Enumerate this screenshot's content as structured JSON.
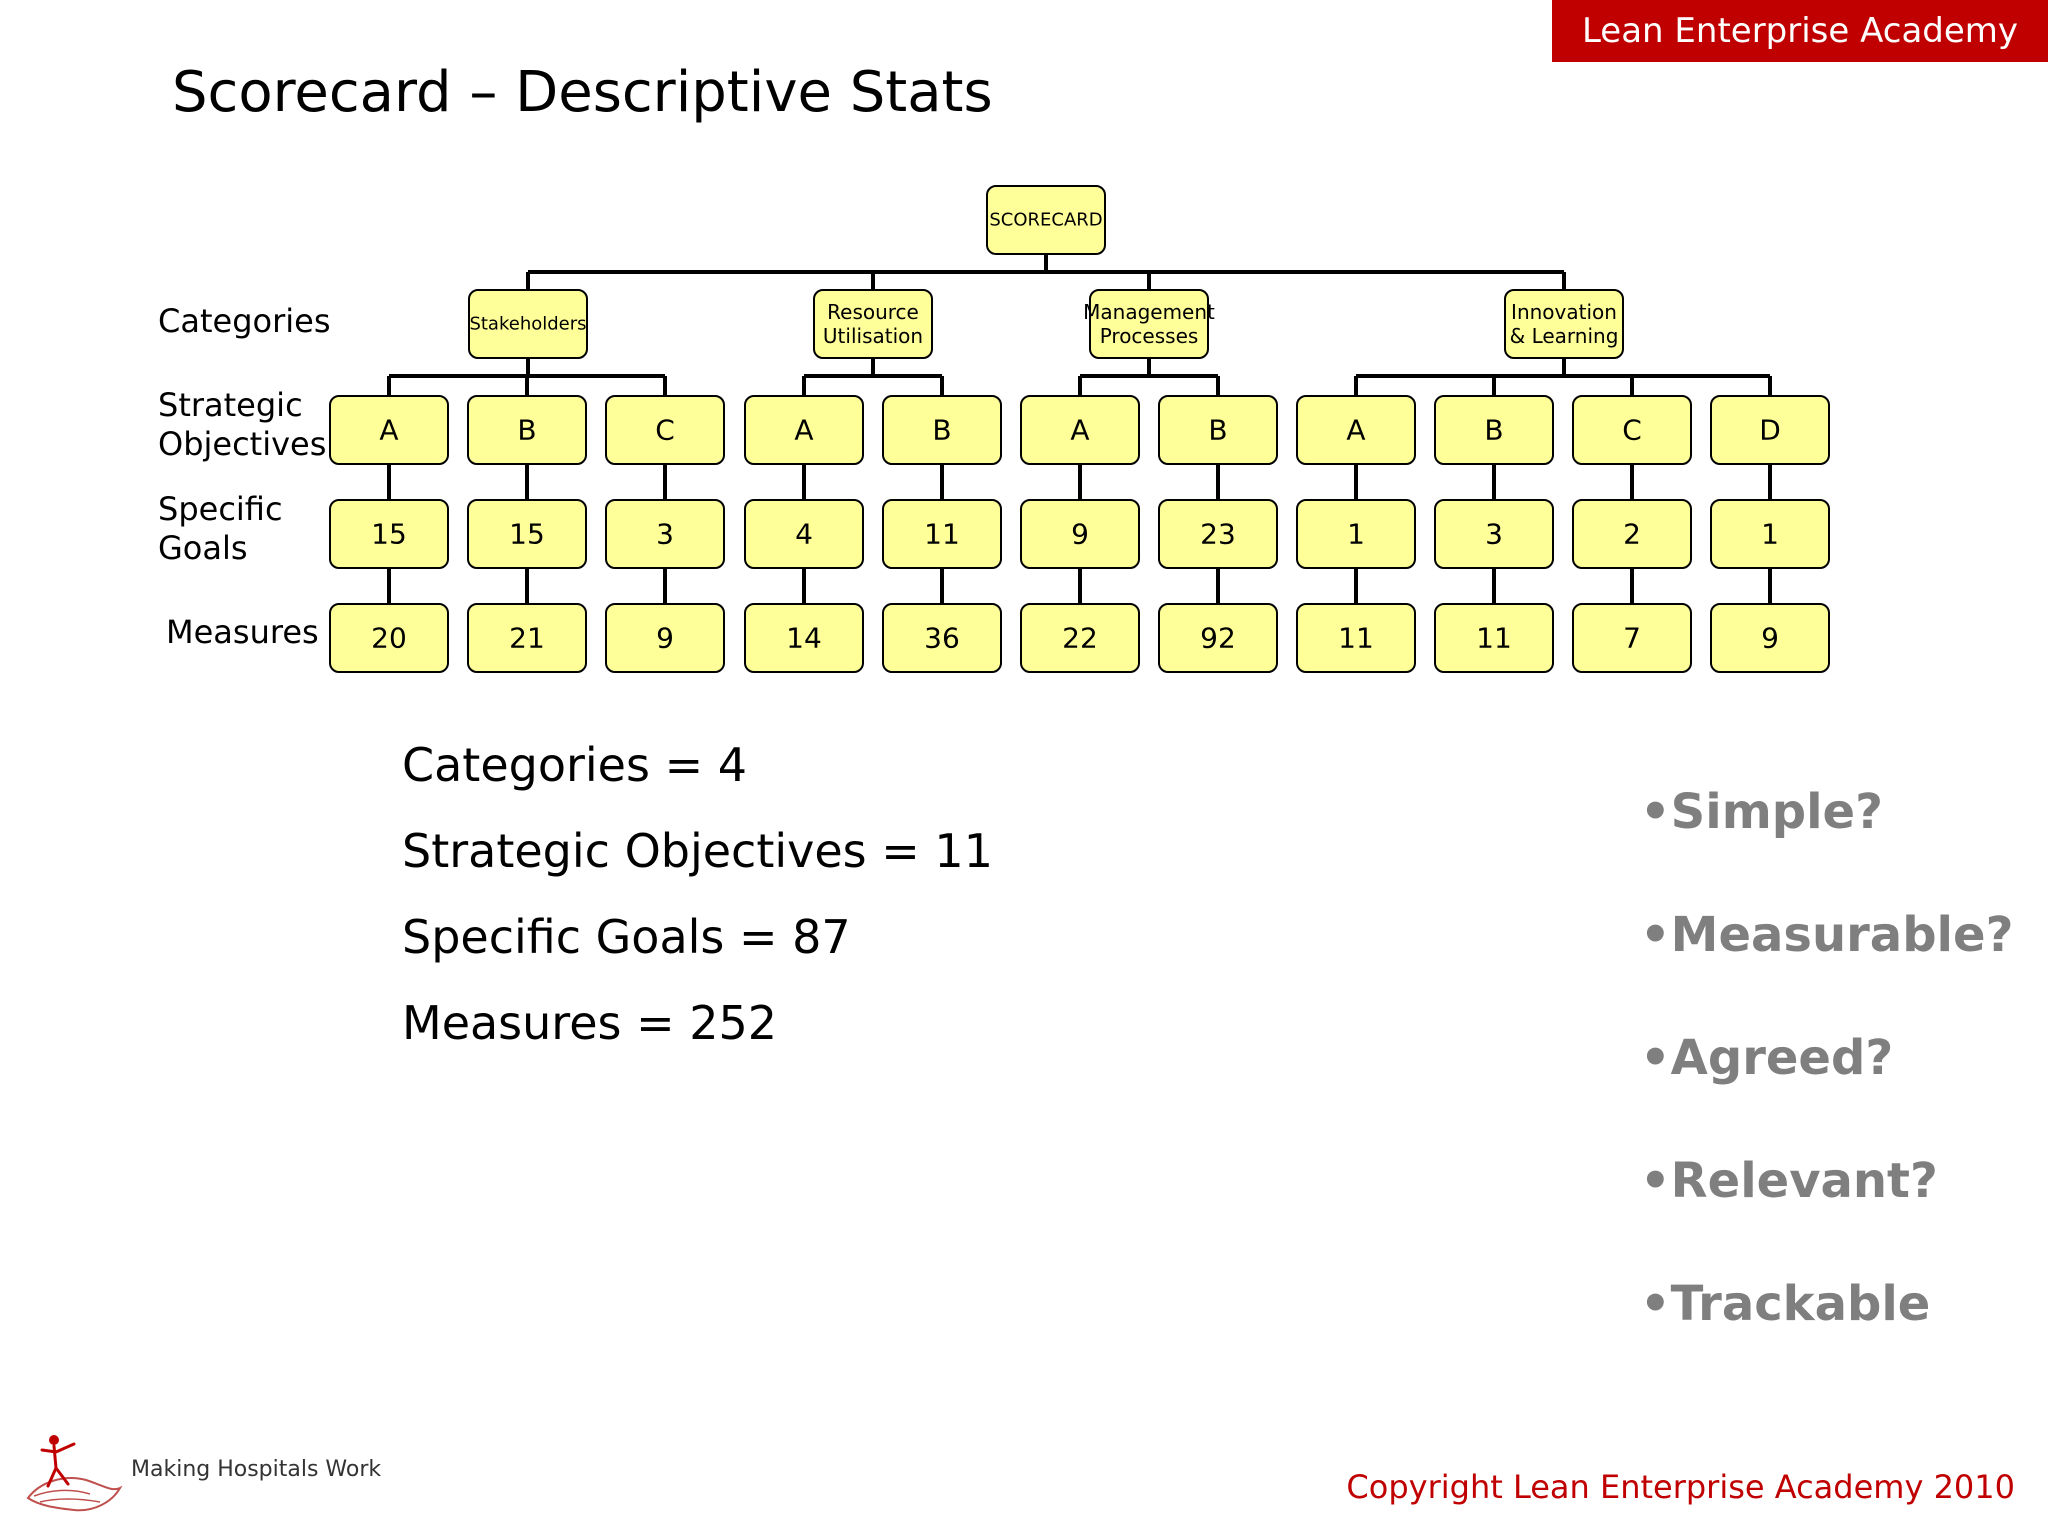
{
  "header": {
    "brand": "Lean Enterprise Academy",
    "title": "Scorecard – Descriptive Stats"
  },
  "row_labels": {
    "categories": "Categories",
    "strategic_objectives": [
      "Strategic",
      "Objectives"
    ],
    "specific_goals": [
      "Specific",
      "Goals"
    ],
    "measures": "Measures"
  },
  "tree": {
    "root": "SCORECARD",
    "categories": [
      {
        "lines": [
          "Stakeholders"
        ],
        "objectives": [
          {
            "label": "A",
            "goals": "15",
            "measures": "20"
          },
          {
            "label": "B",
            "goals": "15",
            "measures": "21"
          },
          {
            "label": "C",
            "goals": "3",
            "measures": "9"
          }
        ]
      },
      {
        "lines": [
          "Resource",
          "Utilisation"
        ],
        "objectives": [
          {
            "label": "A",
            "goals": "4",
            "measures": "14"
          },
          {
            "label": "B",
            "goals": "11",
            "measures": "36"
          }
        ]
      },
      {
        "lines": [
          "Management",
          "Processes"
        ],
        "objectives": [
          {
            "label": "A",
            "goals": "9",
            "measures": "22"
          },
          {
            "label": "B",
            "goals": "23",
            "measures": "92"
          }
        ]
      },
      {
        "lines": [
          "Innovation",
          "& Learning"
        ],
        "objectives": [
          {
            "label": "A",
            "goals": "1",
            "measures": "11"
          },
          {
            "label": "B",
            "goals": "3",
            "measures": "11"
          },
          {
            "label": "C",
            "goals": "2",
            "measures": "7"
          },
          {
            "label": "D",
            "goals": "1",
            "measures": "9"
          }
        ]
      }
    ]
  },
  "stats": [
    "Categories = 4",
    "Strategic Objectives = 11",
    "Specific Goals = 87",
    "Measures = 252"
  ],
  "criteria": [
    "•Simple?",
    "•Measurable?",
    "•Agreed?",
    "•Relevant?",
    "•Trackable"
  ],
  "footer": {
    "tagline": "Making Hospitals Work",
    "copyright": "Copyright Lean Enterprise Academy 2010"
  },
  "colors": {
    "accent": "#c00000",
    "box_fill": "#ffff99",
    "criteria_text": "#7f7f7f"
  },
  "icons": {
    "logo": "hospital-logo-icon"
  }
}
